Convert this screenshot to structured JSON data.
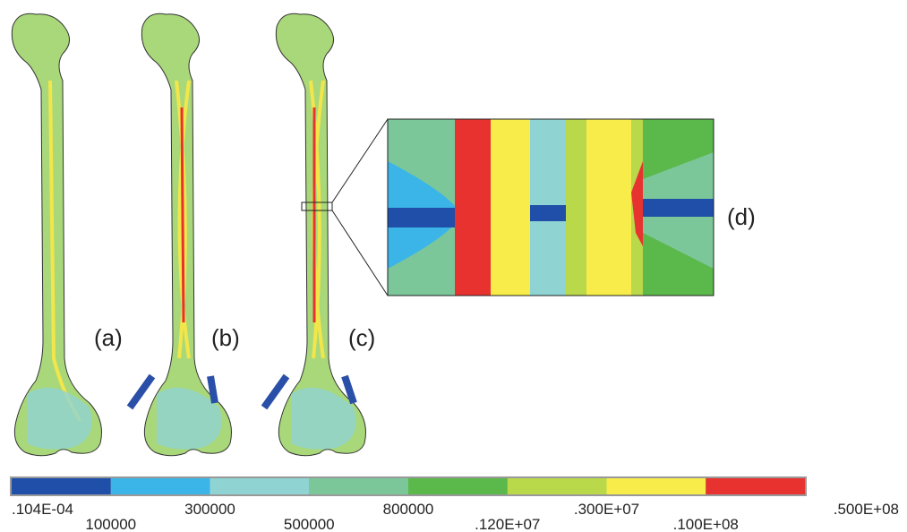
{
  "panels": [
    {
      "label": "(a)"
    },
    {
      "label": "(b)"
    },
    {
      "label": "(c)"
    },
    {
      "label": "(d)"
    }
  ],
  "colorbar": {
    "colors": [
      "#1f4fa8",
      "#3bb5e8",
      "#8fd3d3",
      "#7cc79a",
      "#5bb84a",
      "#b9d84a",
      "#f7ec4a",
      "#e8322f"
    ],
    "labels": [
      ".104E-04",
      "100000",
      "300000",
      "500000",
      "800000",
      ".120E+07",
      ".300E+07",
      ".100E+08",
      ".500E+08"
    ]
  }
}
